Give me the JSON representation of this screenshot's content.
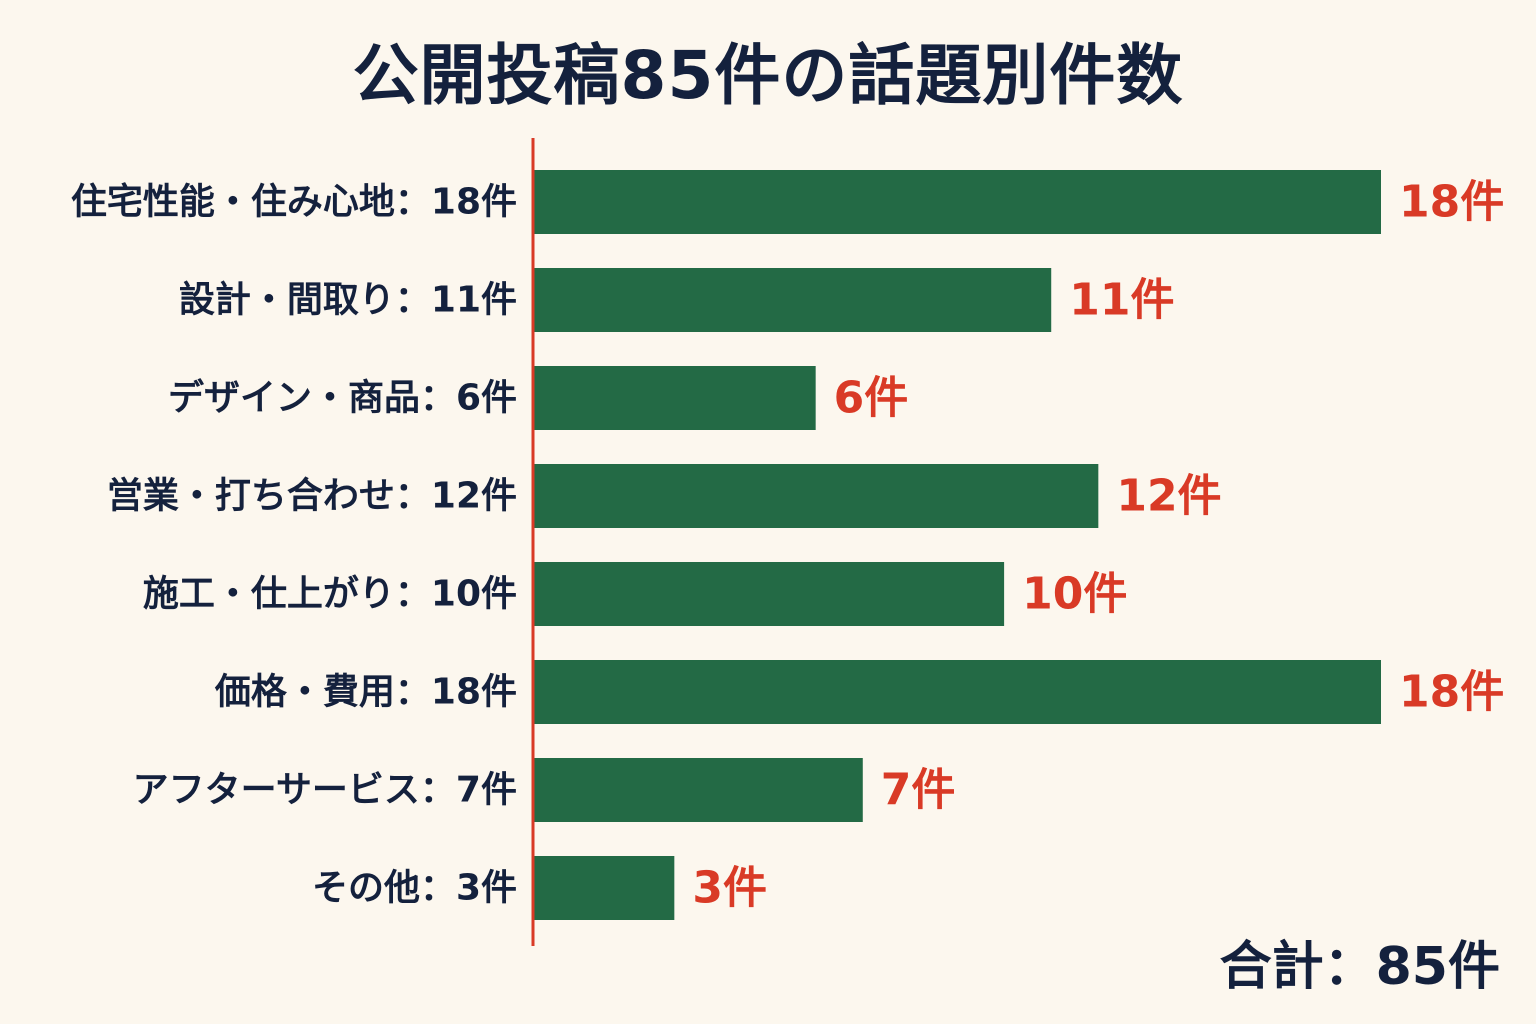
{
  "chart_data": {
    "type": "bar",
    "orientation": "horizontal",
    "title": "公開投稿85件の話題別件数",
    "categories": [
      "住宅性能・住み心地：18件",
      "設計・間取り：11件",
      "デザイン・商品：6件",
      "営業・打ち合わせ：12件",
      "施工・仕上がり：10件",
      "価格・費用：18件",
      "アフターサービス：7件",
      "その他：3件"
    ],
    "values": [
      18,
      11,
      6,
      12,
      10,
      18,
      7,
      3
    ],
    "value_labels": [
      "18件",
      "11件",
      "6件",
      "12件",
      "10件",
      "18件",
      "7件",
      "3件"
    ],
    "xlim": [
      0,
      18
    ],
    "xlabel": "",
    "ylabel": "",
    "grid": false,
    "legend": "none",
    "total_label": "合計：85件",
    "colors": {
      "bar": "#236a45",
      "value_label": "#d93a26",
      "axis_line": "#d93a26",
      "text": "#14213d",
      "background": "#fcf7ee"
    }
  }
}
